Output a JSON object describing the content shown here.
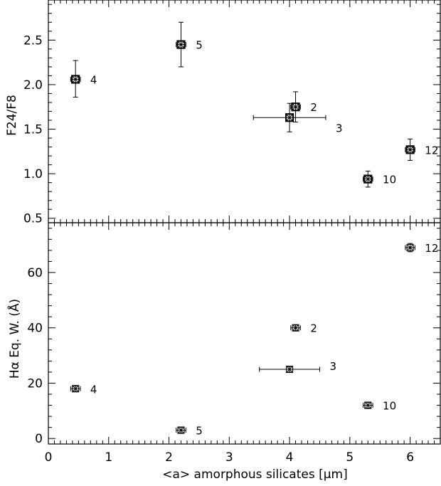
{
  "chart_data": [
    {
      "type": "scatter",
      "title": "",
      "xlabel": "",
      "ylabel": "F24/F8",
      "xlim": [
        0,
        6.5
      ],
      "ylim": [
        0.45,
        2.95
      ],
      "yticks": [
        0.5,
        1.0,
        1.5,
        2.0,
        2.5
      ],
      "ytick_labels": [
        "0.5",
        "1.0",
        "1.5",
        "2.0",
        "2.5"
      ],
      "grid": false,
      "marker": "boxed-x-bold",
      "points": [
        {
          "label": "4",
          "x": 0.45,
          "y": 2.06,
          "xerr": 0.08,
          "yerr_low": 0.2,
          "yerr_high": 0.21
        },
        {
          "label": "5",
          "x": 2.2,
          "y": 2.45,
          "xerr": 0.08,
          "yerr_low": 0.25,
          "yerr_high": 0.25
        },
        {
          "label": "2",
          "x": 4.1,
          "y": 1.75,
          "xerr": 0.08,
          "yerr_low": 0.17,
          "yerr_high": 0.17
        },
        {
          "label": "3",
          "x": 4.0,
          "y": 1.63,
          "xerr": 0.6,
          "yerr_low": 0.16,
          "yerr_high": 0.16
        },
        {
          "label": "10",
          "x": 5.3,
          "y": 0.94,
          "xerr": 0.08,
          "yerr_low": 0.09,
          "yerr_high": 0.09
        },
        {
          "label": "12",
          "x": 6.0,
          "y": 1.27,
          "xerr": 0.08,
          "yerr_low": 0.12,
          "yerr_high": 0.12
        }
      ]
    },
    {
      "type": "scatter",
      "title": "",
      "xlabel": "<a> amorphous silicates [μm]",
      "ylabel": "Hα Eq. W. (Å)",
      "xlim": [
        0,
        6.5
      ],
      "ylim": [
        -2,
        78
      ],
      "xticks": [
        0,
        1,
        2,
        3,
        4,
        5,
        6
      ],
      "xtick_labels": [
        "0",
        "1",
        "2",
        "3",
        "4",
        "5",
        "6"
      ],
      "yticks": [
        0,
        20,
        40,
        60
      ],
      "ytick_labels": [
        "0",
        "20",
        "40",
        "60"
      ],
      "grid": false,
      "marker": "boxed-x",
      "points": [
        {
          "label": "4",
          "x": 0.45,
          "y": 18,
          "xerr": 0.08,
          "yerr_low": 1.0,
          "yerr_high": 1.0
        },
        {
          "label": "5",
          "x": 2.2,
          "y": 3,
          "xerr": 0.08,
          "yerr_low": 1.0,
          "yerr_high": 1.0
        },
        {
          "label": "2",
          "x": 4.1,
          "y": 40,
          "xerr": 0.08,
          "yerr_low": 1.0,
          "yerr_high": 1.0
        },
        {
          "label": "3",
          "x": 4.0,
          "y": 25,
          "xerr": 0.5,
          "yerr_low": 1.0,
          "yerr_high": 1.0
        },
        {
          "label": "10",
          "x": 5.3,
          "y": 12,
          "xerr": 0.08,
          "yerr_low": 1.0,
          "yerr_high": 1.0
        },
        {
          "label": "12",
          "x": 6.0,
          "y": 69,
          "xerr": 0.08,
          "yerr_low": 1.5,
          "yerr_high": 1.5
        }
      ]
    }
  ]
}
